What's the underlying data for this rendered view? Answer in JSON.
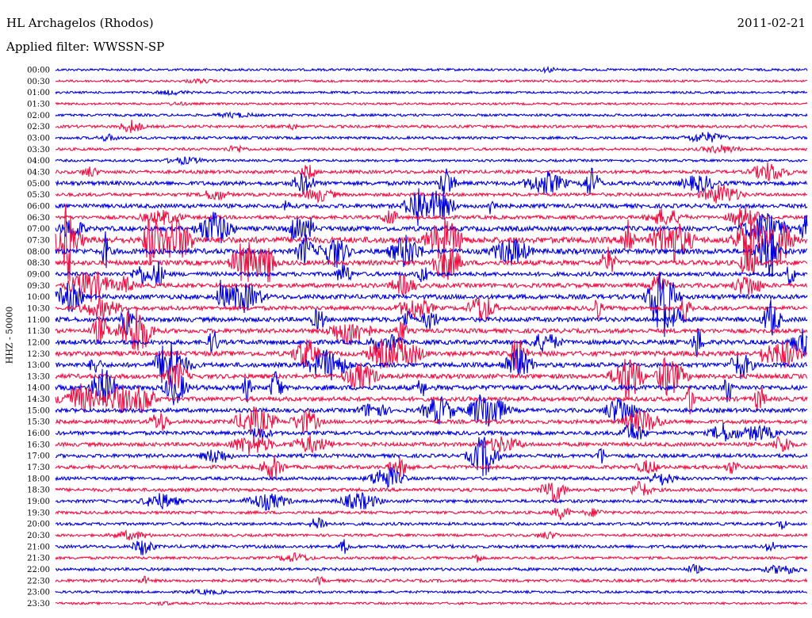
{
  "header": {
    "station_title": "HL Archagelos (Rhodos)",
    "date": "2011-02-21",
    "filter_line": "Applied filter: WWSSN-SP"
  },
  "side_label": "HHZ - 50000",
  "chart_data": {
    "type": "seismogram",
    "traces": [
      {
        "time": "00:00",
        "color": "#0000dd",
        "amplitude": 0.08
      },
      {
        "time": "00:30",
        "color": "#ee1144",
        "amplitude": 0.06
      },
      {
        "time": "01:00",
        "color": "#0000dd",
        "amplitude": 0.05
      },
      {
        "time": "01:30",
        "color": "#ee1144",
        "amplitude": 0.05
      },
      {
        "time": "02:00",
        "color": "#0000dd",
        "amplitude": 0.12
      },
      {
        "time": "02:30",
        "color": "#ee1144",
        "amplitude": 0.18
      },
      {
        "time": "03:00",
        "color": "#0000dd",
        "amplitude": 0.15
      },
      {
        "time": "03:30",
        "color": "#ee1144",
        "amplitude": 0.15
      },
      {
        "time": "04:00",
        "color": "#0000dd",
        "amplitude": 0.1
      },
      {
        "time": "04:30",
        "color": "#ee1144",
        "amplitude": 0.3
      },
      {
        "time": "05:00",
        "color": "#0000dd",
        "amplitude": 0.45
      },
      {
        "time": "05:30",
        "color": "#ee1144",
        "amplitude": 0.3
      },
      {
        "time": "06:00",
        "color": "#0000dd",
        "amplitude": 0.45
      },
      {
        "time": "06:30",
        "color": "#ee1144",
        "amplitude": 0.35
      },
      {
        "time": "07:00",
        "color": "#0000dd",
        "amplitude": 0.6
      },
      {
        "time": "07:30",
        "color": "#ee1144",
        "amplitude": 0.85
      },
      {
        "time": "08:00",
        "color": "#0000dd",
        "amplitude": 0.7
      },
      {
        "time": "08:30",
        "color": "#ee1144",
        "amplitude": 0.6
      },
      {
        "time": "09:00",
        "color": "#0000dd",
        "amplitude": 0.45
      },
      {
        "time": "09:30",
        "color": "#ee1144",
        "amplitude": 0.5
      },
      {
        "time": "10:00",
        "color": "#0000dd",
        "amplitude": 0.55
      },
      {
        "time": "10:30",
        "color": "#ee1144",
        "amplitude": 0.45
      },
      {
        "time": "11:00",
        "color": "#0000dd",
        "amplitude": 0.55
      },
      {
        "time": "11:30",
        "color": "#ee1144",
        "amplitude": 0.5
      },
      {
        "time": "12:00",
        "color": "#0000dd",
        "amplitude": 0.55
      },
      {
        "time": "12:30",
        "color": "#ee1144",
        "amplitude": 0.6
      },
      {
        "time": "13:00",
        "color": "#0000dd",
        "amplitude": 0.55
      },
      {
        "time": "13:30",
        "color": "#ee1144",
        "amplitude": 0.55
      },
      {
        "time": "14:00",
        "color": "#0000dd",
        "amplitude": 0.6
      },
      {
        "time": "14:30",
        "color": "#ee1144",
        "amplitude": 0.5
      },
      {
        "time": "15:00",
        "color": "#0000dd",
        "amplitude": 0.45
      },
      {
        "time": "15:30",
        "color": "#ee1144",
        "amplitude": 0.4
      },
      {
        "time": "16:00",
        "color": "#0000dd",
        "amplitude": 0.4
      },
      {
        "time": "16:30",
        "color": "#ee1144",
        "amplitude": 0.4
      },
      {
        "time": "17:00",
        "color": "#0000dd",
        "amplitude": 0.35
      },
      {
        "time": "17:30",
        "color": "#ee1144",
        "amplitude": 0.35
      },
      {
        "time": "18:00",
        "color": "#0000dd",
        "amplitude": 0.25
      },
      {
        "time": "18:30",
        "color": "#ee1144",
        "amplitude": 0.3
      },
      {
        "time": "19:00",
        "color": "#0000dd",
        "amplitude": 0.25
      },
      {
        "time": "19:30",
        "color": "#ee1144",
        "amplitude": 0.2
      },
      {
        "time": "20:00",
        "color": "#0000dd",
        "amplitude": 0.2
      },
      {
        "time": "20:30",
        "color": "#ee1144",
        "amplitude": 0.15
      },
      {
        "time": "21:00",
        "color": "#0000dd",
        "amplitude": 0.25
      },
      {
        "time": "21:30",
        "color": "#ee1144",
        "amplitude": 0.15
      },
      {
        "time": "22:00",
        "color": "#0000dd",
        "amplitude": 0.2
      },
      {
        "time": "22:30",
        "color": "#ee1144",
        "amplitude": 0.2
      },
      {
        "time": "23:00",
        "color": "#0000dd",
        "amplitude": 0.1
      },
      {
        "time": "23:30",
        "color": "#ee1144",
        "amplitude": 0.08
      }
    ]
  }
}
